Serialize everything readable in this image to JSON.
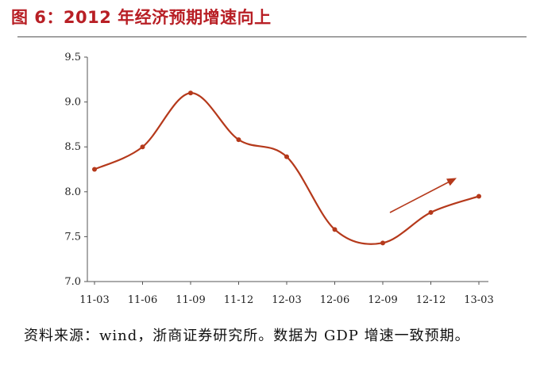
{
  "title": "图 6：2012 年经济预期增速向上",
  "source": "资料来源：wind，浙商证券研究所。数据为 GDP 增速一致预期。",
  "colors": {
    "line": "#b5391b",
    "title": "#b81f25",
    "axis": "#555555"
  },
  "chart_data": {
    "type": "line",
    "categories": [
      "11-03",
      "11-06",
      "11-09",
      "11-12",
      "12-03",
      "12-06",
      "12-09",
      "12-12",
      "13-03"
    ],
    "values": [
      8.25,
      8.5,
      9.1,
      8.58,
      8.39,
      7.58,
      7.43,
      7.77,
      7.95
    ],
    "ylim": [
      7.0,
      9.5
    ],
    "yticks": [
      "7.0",
      "7.5",
      "8.0",
      "8.5",
      "9.0",
      "9.5"
    ],
    "xlabel": "",
    "ylabel": "",
    "grid": false,
    "annotation": "upward-trend-arrow"
  }
}
